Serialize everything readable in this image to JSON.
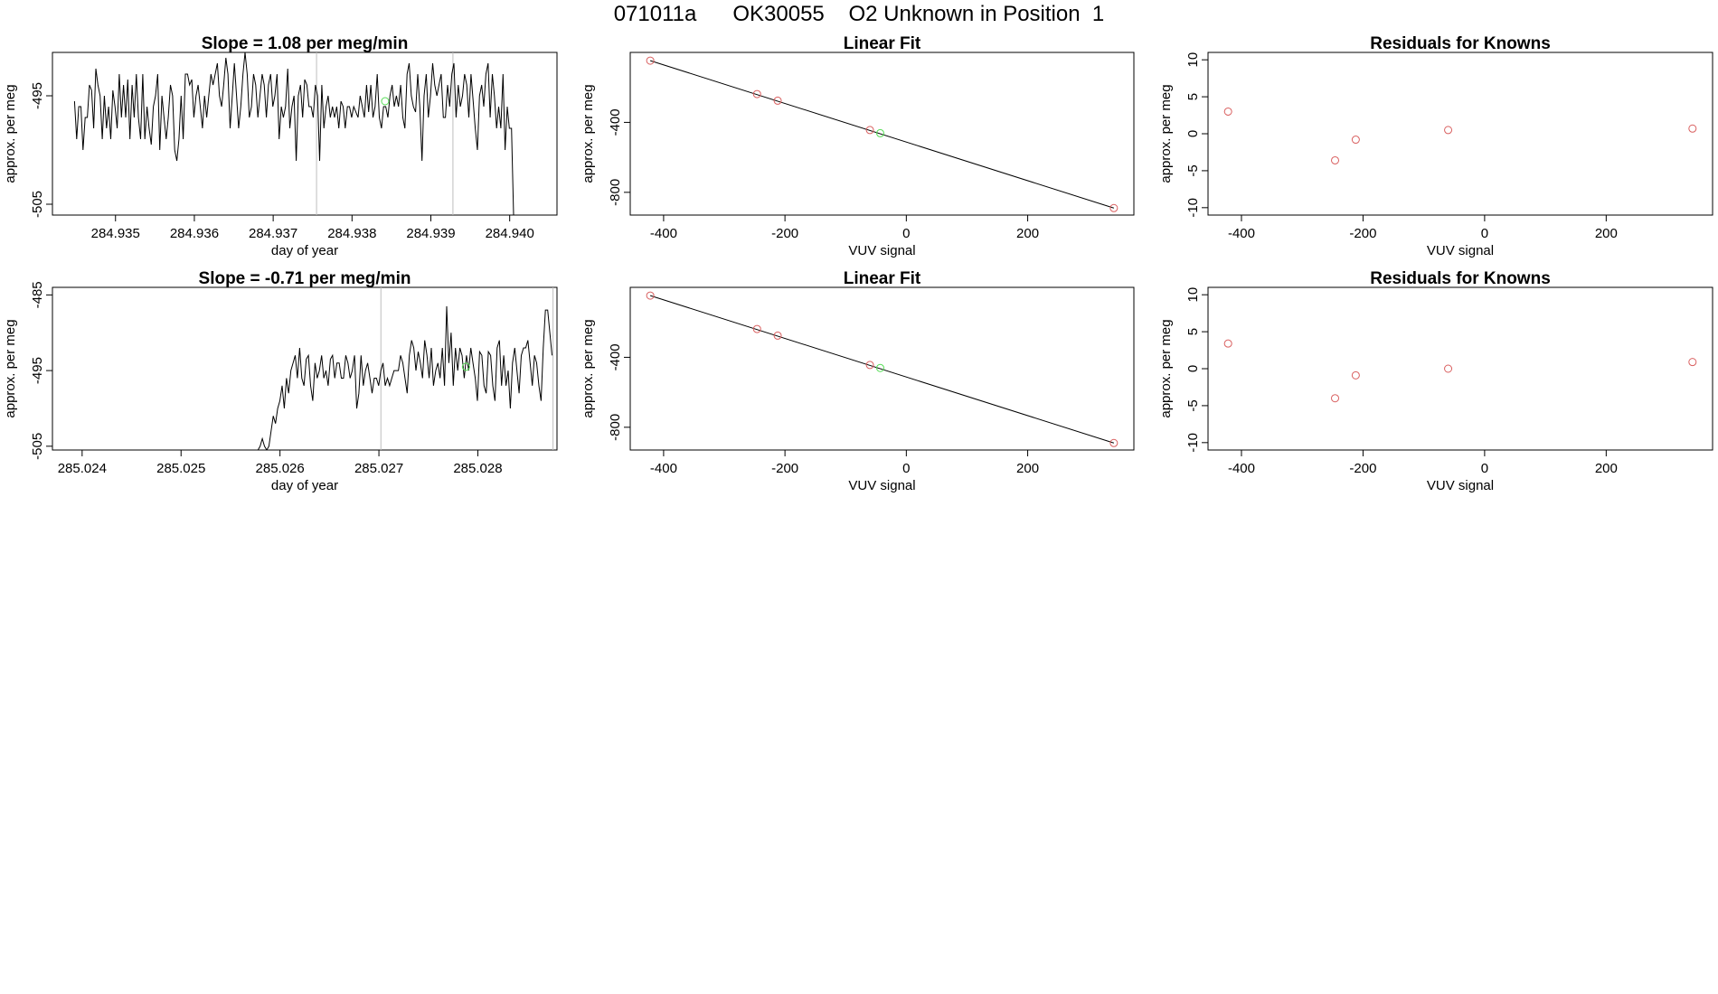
{
  "page_title": "071011a      OK30055    O2 Unknown in Position  1",
  "colors": {
    "ink": "#000000",
    "guide": "#bebebe",
    "known": "#d95f5f",
    "unknown": "#55dd55"
  },
  "chart_data": [
    {
      "type": "line",
      "title": "Slope =  1.08  per meg/min",
      "xlabel": "day of year",
      "ylabel": "approx. per meg",
      "xlim": [
        284.9342,
        284.9406
      ],
      "ylim": [
        -506,
        -491
      ],
      "xticks": [
        "284.935",
        "284.936",
        "284.937",
        "284.938",
        "284.939",
        "284.940"
      ],
      "yticks": [
        "-505",
        "-495"
      ],
      "vlines": [
        284.93755,
        284.93928
      ],
      "highlight_point": {
        "x": 284.93842,
        "y": -495.5
      },
      "series": [
        {
          "x_start": 284.93448,
          "x_end": 284.94005,
          "y": [
            -495.5,
            -499,
            -496,
            -496,
            -500,
            -497,
            -497,
            -494,
            -494.5,
            -498,
            -492.5,
            -494,
            -495,
            -499,
            -495,
            -498,
            -496,
            -499,
            -494.5,
            -496,
            -498,
            -493,
            -497,
            -494,
            -497,
            -493.5,
            -499,
            -494,
            -497,
            -493,
            -497,
            -499,
            -493,
            -499,
            -496,
            -498,
            -499.5,
            -496,
            -495,
            -493,
            -500,
            -495,
            -497,
            -499,
            -497,
            -494,
            -495,
            -500,
            -501,
            -499,
            -495,
            -499,
            -493,
            -493,
            -494,
            -493.5,
            -497,
            -495,
            -494,
            -496,
            -498,
            -495,
            -497,
            -495,
            -493,
            -494,
            -493,
            -492,
            -495,
            -496,
            -494,
            -491.5,
            -493,
            -498,
            -495,
            -492,
            -495,
            -498,
            -496,
            -493,
            -491,
            -493,
            -497,
            -496,
            -493,
            -494,
            -497,
            -495,
            -493,
            -494,
            -497,
            -494,
            -493,
            -496,
            -495,
            -493,
            -499,
            -496,
            -497,
            -496,
            -492.5,
            -498,
            -496,
            -495,
            -501,
            -495,
            -494,
            -497,
            -493.5,
            -494,
            -496,
            -496,
            -497,
            -494,
            -495,
            -501,
            -494,
            -498,
            -496,
            -495,
            -497,
            -496,
            -497,
            -496,
            -498,
            -495.5,
            -496,
            -498,
            -496,
            -496,
            -497,
            -496,
            -496.5,
            -497,
            -495,
            -496,
            -497,
            -494,
            -496.5,
            -494,
            -497,
            -496,
            -493,
            -497,
            -498,
            -496,
            -496,
            -497,
            -495,
            -494,
            -496,
            -495,
            -496,
            -494,
            -497,
            -498,
            -493,
            -492,
            -495,
            -496,
            -496.5,
            -493,
            -496,
            -501,
            -495,
            -493,
            -497,
            -495,
            -492,
            -494,
            -495,
            -494,
            -493,
            -497,
            -497,
            -494,
            -496,
            -493,
            -492,
            -497,
            -494,
            -496,
            -495,
            -493,
            -494,
            -497,
            -493,
            -495.5,
            -498,
            -500,
            -495,
            -494,
            -496,
            -493,
            -492,
            -497,
            -493,
            -495,
            -498,
            -496,
            -498,
            -493,
            -500,
            -496,
            -498,
            -498,
            -506
          ]
        }
      ]
    },
    {
      "type": "scatter",
      "title": "Linear Fit",
      "xlabel": "VUV signal",
      "ylabel": "approx. per meg",
      "xlim": [
        -455,
        375
      ],
      "ylim": [
        -930,
        0
      ],
      "xticks": [
        -400,
        -200,
        0,
        200
      ],
      "yticks": [
        -800,
        -400
      ],
      "fit_line": {
        "x": [
          -422,
          342
        ],
        "y": [
          -47,
          -890
        ]
      },
      "known_points": [
        {
          "x": -422,
          "y": -47
        },
        {
          "x": -246,
          "y": -238
        },
        {
          "x": -212,
          "y": -276
        },
        {
          "x": -60,
          "y": -444
        },
        {
          "x": 342,
          "y": -890
        }
      ],
      "unknown_points": [
        {
          "x": -43,
          "y": -462
        }
      ]
    },
    {
      "type": "scatter",
      "title": "Residuals for Knowns",
      "xlabel": "VUV signal",
      "ylabel": "approx. per meg",
      "xlim": [
        -455,
        375
      ],
      "ylim": [
        -11,
        11
      ],
      "xticks": [
        -400,
        -200,
        0,
        200
      ],
      "yticks": [
        -10,
        -5,
        0,
        5,
        10
      ],
      "known_points": [
        {
          "x": -422,
          "y": 3
        },
        {
          "x": -246,
          "y": -3.6
        },
        {
          "x": -212,
          "y": -0.8
        },
        {
          "x": -60,
          "y": 0.5
        },
        {
          "x": 342,
          "y": 0.7
        }
      ]
    },
    {
      "type": "line",
      "title": "Slope =  -0.71  per meg/min",
      "xlabel": "day of year",
      "ylabel": "approx. per meg",
      "xlim": [
        285.0237,
        285.0288
      ],
      "ylim": [
        -505.5,
        -484
      ],
      "xticks": [
        "285.024",
        "285.025",
        "285.026",
        "285.027",
        "285.028"
      ],
      "yticks": [
        "-505",
        "-495",
        "-485"
      ],
      "vlines": [
        285.02702,
        285.02876
      ],
      "highlight_point": {
        "x": 285.02788,
        "y": -494.5
      },
      "series": [
        {
          "x_start": 285.02398,
          "x_end": 285.02875,
          "y": [
            -505.5,
            -505.5,
            -505.5,
            -505.5,
            -505.5,
            -505.5,
            -505.5,
            -505.5,
            -505.5,
            -505.5,
            -505.5,
            -505.5,
            -505.5,
            -505.5,
            -505.5,
            -505.5,
            -505.5,
            -505.5,
            -505.5,
            -505.5,
            -505.5,
            -505.5,
            -505.5,
            -505.5,
            -505.5,
            -505.5,
            -505.5,
            -505.5,
            -505.5,
            -505.5,
            -505.5,
            -505.5,
            -505.5,
            -505.5,
            -505.5,
            -505.5,
            -505.5,
            -505.5,
            -505.5,
            -505.5,
            -505.5,
            -505.5,
            -505.5,
            -505.5,
            -505.5,
            -505.5,
            -505.5,
            -505.5,
            -505.5,
            -505.5,
            -505.5,
            -505.5,
            -505.5,
            -505.5,
            -505.5,
            -505.5,
            -505.5,
            -505.5,
            -505.5,
            -505.5,
            -505.5,
            -505.5,
            -505.5,
            -505.5,
            -505.5,
            -505.5,
            -505.5,
            -505.5,
            -505.5,
            -505.5,
            -505.5,
            -505.5,
            -505.5,
            -505.5,
            -505.5,
            -505.5,
            -505.5,
            -505.5,
            -505.5,
            -505.5,
            -505.5,
            -505.5,
            -505,
            -504,
            -505,
            -505.5,
            -505,
            -503,
            -501,
            -502,
            -500,
            -499,
            -497,
            -500,
            -496,
            -498,
            -495,
            -494,
            -493,
            -496,
            -492,
            -496,
            -497,
            -493.5,
            -493,
            -497,
            -499,
            -494,
            -496,
            -495,
            -493,
            -496,
            -495,
            -497,
            -493.5,
            -493,
            -496,
            -494,
            -494,
            -496,
            -496,
            -493,
            -494,
            -496,
            -495,
            -493,
            -500,
            -498,
            -493,
            -497,
            -495,
            -494,
            -496,
            -498,
            -496,
            -496,
            -497,
            -495,
            -494,
            -497,
            -496,
            -497,
            -496,
            -495,
            -495,
            -495,
            -493,
            -494,
            -496,
            -498,
            -493,
            -491,
            -492,
            -495,
            -492.5,
            -494,
            -496,
            -491,
            -493,
            -496,
            -492,
            -497,
            -495,
            -494,
            -496,
            -492,
            -497,
            -486.5,
            -494,
            -490,
            -497,
            -492,
            -495,
            -492,
            -493,
            -496,
            -493,
            -495,
            -492,
            -494,
            -496,
            -499,
            -492.5,
            -493,
            -497,
            -498,
            -492.5,
            -493,
            -497,
            -499,
            -492,
            -491,
            -497,
            -493,
            -497,
            -495,
            -500,
            -494,
            -492,
            -495,
            -498,
            -493,
            -492,
            -492,
            -491,
            -494,
            -497,
            -493,
            -494,
            -497,
            -499,
            -492,
            -487,
            -487,
            -490,
            -493
          ]
        }
      ]
    },
    {
      "type": "scatter",
      "title": "Linear Fit",
      "xlabel": "VUV signal",
      "ylabel": "approx. per meg",
      "xlim": [
        -455,
        375
      ],
      "ylim": [
        -930,
        0
      ],
      "xticks": [
        -400,
        -200,
        0,
        200
      ],
      "yticks": [
        -800,
        -400
      ],
      "fit_line": {
        "x": [
          -422,
          342
        ],
        "y": [
          -47,
          -890
        ]
      },
      "known_points": [
        {
          "x": -422,
          "y": -47
        },
        {
          "x": -246,
          "y": -238
        },
        {
          "x": -212,
          "y": -276
        },
        {
          "x": -60,
          "y": -444
        },
        {
          "x": 342,
          "y": -890
        }
      ],
      "unknown_points": [
        {
          "x": -43,
          "y": -461
        }
      ]
    },
    {
      "type": "scatter",
      "title": "Residuals for Knowns",
      "xlabel": "VUV signal",
      "ylabel": "approx. per meg",
      "xlim": [
        -455,
        375
      ],
      "ylim": [
        -11,
        11
      ],
      "xticks": [
        -400,
        -200,
        0,
        200
      ],
      "yticks": [
        -10,
        -5,
        0,
        5,
        10
      ],
      "known_points": [
        {
          "x": -422,
          "y": 3.4
        },
        {
          "x": -246,
          "y": -4
        },
        {
          "x": -212,
          "y": -0.9
        },
        {
          "x": -60,
          "y": 0
        },
        {
          "x": 342,
          "y": 0.9
        }
      ]
    }
  ]
}
